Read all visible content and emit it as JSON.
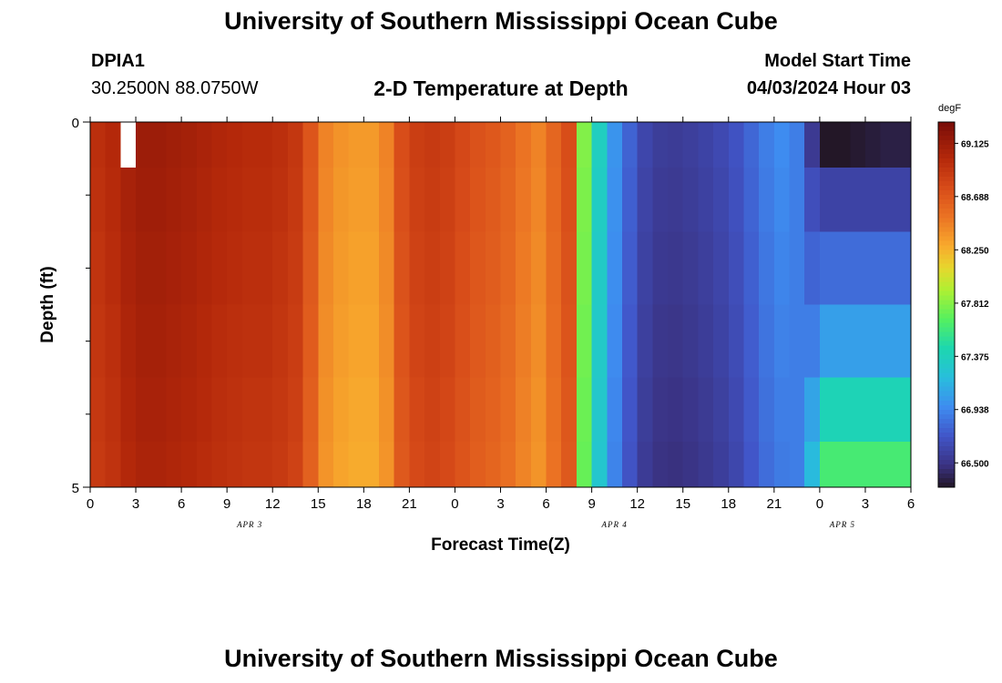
{
  "header": {
    "title": "University of Southern Mississippi Ocean Cube",
    "station_id": "DPIA1",
    "coordinates": "30.2500N  88.0750W",
    "subtitle": "2-D Temperature at Depth",
    "model_start_label": "Model Start Time",
    "model_start_value": "04/03/2024 Hour 03"
  },
  "footer": {
    "title": "University of Southern Mississippi Ocean Cube"
  },
  "chart_data": {
    "type": "heatmap",
    "title": "2-D Temperature at Depth",
    "xlabel": "Forecast Time(Z)",
    "ylabel": "Depth (ft)",
    "colorbar_unit": "degF",
    "x_tick_labels": [
      "0",
      "3",
      "6",
      "9",
      "12",
      "15",
      "18",
      "21",
      "0",
      "3",
      "6",
      "9",
      "12",
      "15",
      "18",
      "21",
      "0",
      "3",
      "6"
    ],
    "day_labels": [
      {
        "label": "APR 3",
        "hour_index": 10.5
      },
      {
        "label": "APR 4",
        "hour_index": 34.5
      },
      {
        "label": "APR 5",
        "hour_index": 49.5
      }
    ],
    "x_range_hours": [
      0,
      54
    ],
    "y_range_ft": [
      0,
      5
    ],
    "y_tick_labels": [
      "0",
      "5"
    ],
    "colorbar_ticks": [
      "69.125",
      "68.688",
      "68.250",
      "67.812",
      "67.375",
      "66.938",
      "66.500"
    ],
    "colorbar_range": [
      66.3,
      69.3
    ],
    "depth_bins_ft": [
      0.25,
      1.0,
      2.0,
      3.0,
      4.0,
      4.75
    ],
    "hourly_profile": [
      68.95,
      69.0,
      69.08,
      69.12,
      69.12,
      69.1,
      69.08,
      69.05,
      69.02,
      69.0,
      68.98,
      68.98,
      68.95,
      68.9,
      68.7,
      68.45,
      68.38,
      68.35,
      68.35,
      68.45,
      68.75,
      68.85,
      68.88,
      68.85,
      68.78,
      68.72,
      68.68,
      68.62,
      68.52,
      68.45,
      68.6,
      68.75,
      67.8,
      67.35,
      67.0,
      66.78,
      66.62,
      66.56,
      66.55,
      66.57,
      66.6,
      66.64,
      66.7,
      66.8,
      66.9,
      66.96,
      66.9,
      66.75,
      66.6,
      66.55,
      66.52,
      66.52,
      66.52,
      66.52,
      66.52
    ],
    "late_surface_values": {
      "hour_start": 47,
      "values": [
        66.35,
        66.32,
        66.3,
        66.3,
        66.32,
        66.34,
        66.36,
        66.36
      ]
    },
    "late_depth_values": [
      66.52,
      66.6,
      66.82,
      67.05,
      67.4,
      67.62
    ],
    "missing_cell": {
      "hour": 2.5,
      "depth_bin": 0
    }
  }
}
